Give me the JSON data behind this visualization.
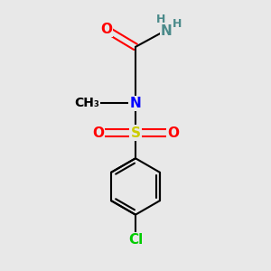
{
  "bg_color": "#e8e8e8",
  "atom_colors": {
    "C": "#000000",
    "H": "#4a8a8a",
    "N": "#0000ff",
    "O": "#ff0000",
    "S": "#cccc00",
    "Cl": "#00cc00"
  },
  "bond_color": "#000000",
  "bond_width": 1.5,
  "font_size": 11,
  "font_size_small": 9
}
